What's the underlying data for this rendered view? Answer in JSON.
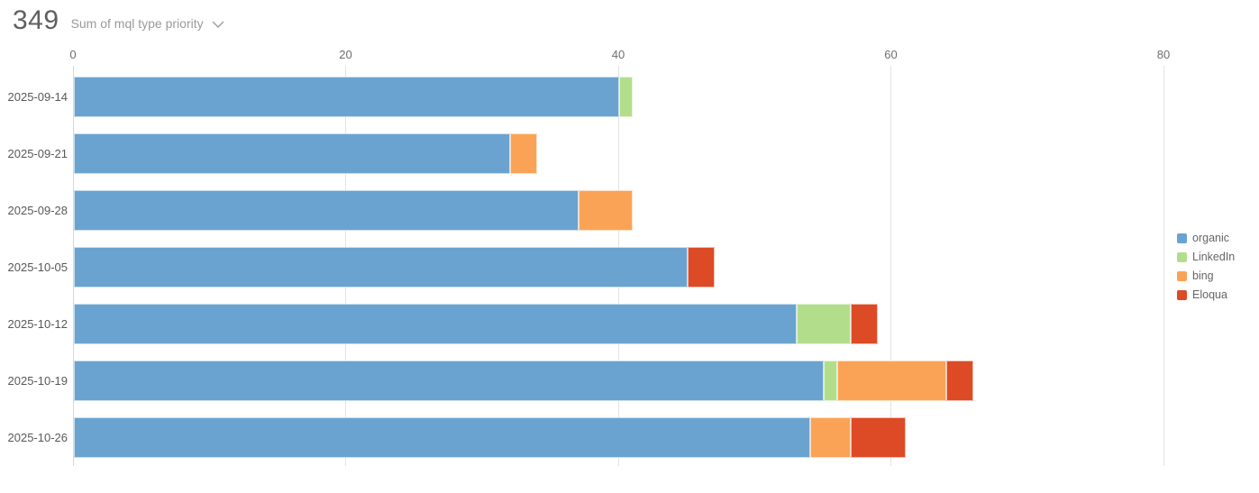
{
  "header": {
    "value": "349",
    "label": "Sum of mql type priority",
    "chevron_icon": "chevron-down-icon"
  },
  "colors": {
    "organic": "#6AA3CF",
    "LinkedIn": "#B2DE8C",
    "bing": "#FAA357",
    "Eloqua": "#DD4A26",
    "gridline": "#e3e3e3",
    "axis_text": "#6e6e6e",
    "category_text": "#585858",
    "header_value_text": "#5f5f5f",
    "header_label_text": "#9a9a9a"
  },
  "chart_data": {
    "type": "bar",
    "orientation": "horizontal",
    "stacked": true,
    "title": "Sum of mql type priority",
    "total": 349,
    "categories": [
      "2025-09-14",
      "2025-09-21",
      "2025-09-28",
      "2025-10-05",
      "2025-10-12",
      "2025-10-19",
      "2025-10-26"
    ],
    "series": [
      {
        "name": "organic",
        "color": "#6AA3CF",
        "values": [
          40,
          32,
          37,
          45,
          53,
          55,
          54
        ]
      },
      {
        "name": "LinkedIn",
        "color": "#B2DE8C",
        "values": [
          1,
          0,
          0,
          0,
          4,
          1,
          0
        ]
      },
      {
        "name": "bing",
        "color": "#FAA357",
        "values": [
          0,
          2,
          4,
          0,
          0,
          8,
          3
        ]
      },
      {
        "name": "Eloqua",
        "color": "#DD4A26",
        "values": [
          0,
          0,
          0,
          2,
          2,
          2,
          4
        ]
      }
    ],
    "row_totals": [
      41,
      34,
      41,
      47,
      59,
      66,
      61
    ],
    "x_axis": {
      "position": "top",
      "ticks": [
        0,
        20,
        40,
        60,
        80
      ],
      "label": ""
    },
    "xlim": [
      0,
      87
    ],
    "grid": "vertical",
    "legend_position": "right"
  }
}
